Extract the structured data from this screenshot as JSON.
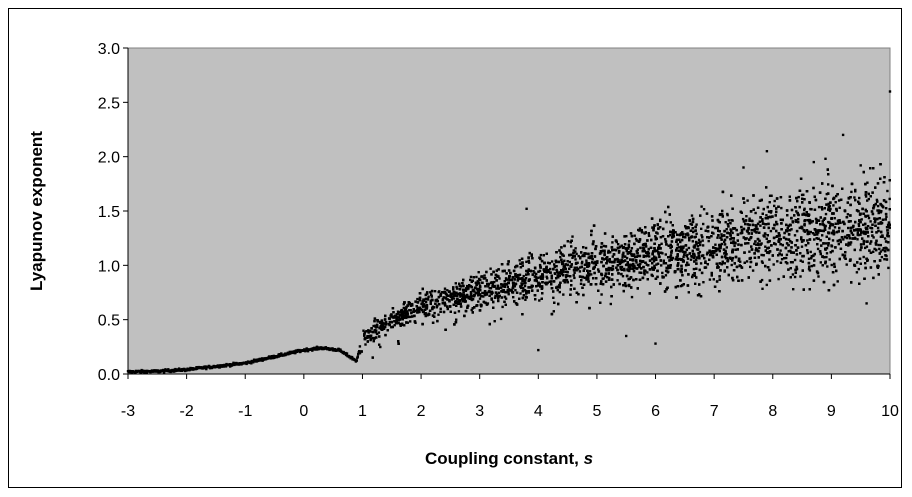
{
  "chart_data": {
    "type": "scatter",
    "title": "",
    "xlabel": "Coupling constant, ",
    "xlabel_italic": "s",
    "ylabel": "Lyapunov exponent",
    "xlim": [
      -3,
      10
    ],
    "ylim": [
      0,
      3.0
    ],
    "xticks": [
      "-3",
      "-2",
      "-1",
      "0",
      "1",
      "2",
      "3",
      "4",
      "5",
      "6",
      "7",
      "8",
      "9",
      "10"
    ],
    "yticks": [
      "0.0",
      "0.5",
      "1.0",
      "1.5",
      "2.0",
      "2.5",
      "3.0"
    ],
    "plot_background": "#c0c0c0",
    "marker_color": "#000000",
    "grid": false,
    "legend": "none",
    "trend": [
      [
        -3.0,
        0.02
      ],
      [
        -2.5,
        0.025
      ],
      [
        -2.0,
        0.04
      ],
      [
        -1.5,
        0.07
      ],
      [
        -1.0,
        0.1
      ],
      [
        -0.5,
        0.16
      ],
      [
        0.0,
        0.22
      ],
      [
        0.3,
        0.24
      ],
      [
        0.6,
        0.22
      ],
      [
        0.9,
        0.12
      ],
      [
        1.0,
        0.32
      ],
      [
        1.5,
        0.5
      ],
      [
        2.0,
        0.62
      ],
      [
        3.0,
        0.77
      ],
      [
        4.0,
        0.9
      ],
      [
        5.0,
        1.02
      ],
      [
        6.0,
        1.1
      ],
      [
        7.0,
        1.18
      ],
      [
        8.0,
        1.28
      ],
      [
        9.0,
        1.34
      ],
      [
        10.0,
        1.4
      ]
    ],
    "outliers": [
      [
        10.0,
        2.6
      ],
      [
        9.2,
        2.2
      ],
      [
        8.7,
        1.95
      ],
      [
        8.9,
        1.98
      ],
      [
        9.5,
        1.92
      ],
      [
        7.9,
        2.05
      ],
      [
        7.5,
        1.9
      ],
      [
        3.8,
        1.52
      ],
      [
        4.0,
        0.22
      ],
      [
        6.0,
        0.28
      ],
      [
        9.6,
        0.65
      ],
      [
        2.6,
        0.5
      ],
      [
        5.5,
        0.35
      ]
    ]
  }
}
